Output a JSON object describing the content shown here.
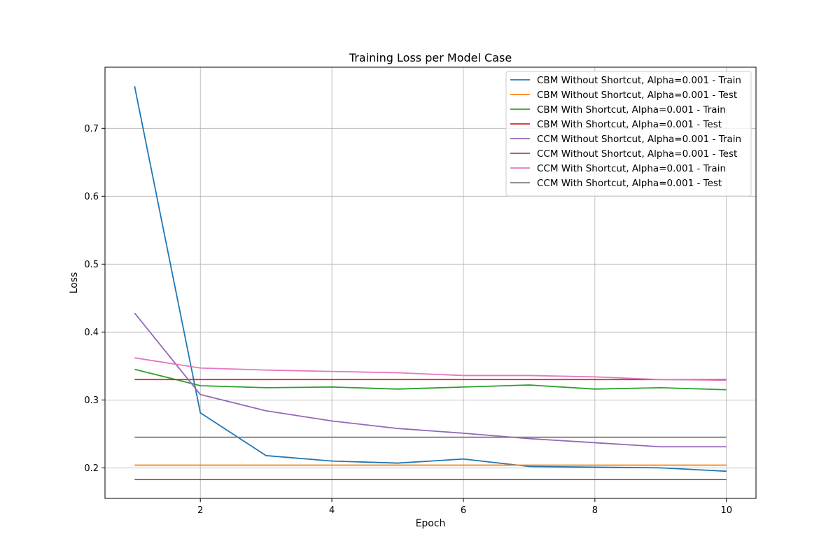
{
  "chart_data": {
    "type": "line",
    "title": "Training Loss per Model Case",
    "xlabel": "Epoch",
    "ylabel": "Loss",
    "xlim": [
      0.55,
      10.45
    ],
    "ylim": [
      0.155,
      0.79
    ],
    "xticks": [
      2,
      4,
      6,
      8,
      10
    ],
    "yticks": [
      0.2,
      0.3,
      0.4,
      0.5,
      0.6,
      0.7
    ],
    "grid": true,
    "legend_position": "top-right",
    "x": [
      1,
      2,
      3,
      4,
      5,
      6,
      7,
      8,
      9,
      10
    ],
    "series": [
      {
        "name": "CBM Without Shortcut, Alpha=0.001 - Train",
        "color": "#1f77b4",
        "values": [
          0.762,
          0.281,
          0.218,
          0.21,
          0.207,
          0.213,
          0.202,
          0.201,
          0.2,
          0.195
        ]
      },
      {
        "name": "CBM Without Shortcut, Alpha=0.001 - Test",
        "color": "#ff7f0e",
        "values": [
          0.204,
          0.204,
          0.204,
          0.204,
          0.204,
          0.204,
          0.204,
          0.204,
          0.204,
          0.204
        ]
      },
      {
        "name": "CBM With Shortcut, Alpha=0.001 - Train",
        "color": "#2ca02c",
        "values": [
          0.345,
          0.321,
          0.318,
          0.319,
          0.316,
          0.319,
          0.322,
          0.316,
          0.318,
          0.315
        ]
      },
      {
        "name": "CBM With Shortcut, Alpha=0.001 - Test",
        "color": "#d62728",
        "values": [
          0.33,
          0.33,
          0.33,
          0.33,
          0.33,
          0.33,
          0.33,
          0.33,
          0.33,
          0.33
        ]
      },
      {
        "name": "CCM Without Shortcut, Alpha=0.001 - Train",
        "color": "#9467bd",
        "values": [
          0.428,
          0.308,
          0.284,
          0.269,
          0.258,
          0.251,
          0.243,
          0.237,
          0.231,
          0.231
        ]
      },
      {
        "name": "CCM Without Shortcut, Alpha=0.001 - Test",
        "color": "#8c564b",
        "values": [
          0.183,
          0.183,
          0.183,
          0.183,
          0.183,
          0.183,
          0.183,
          0.183,
          0.183,
          0.183
        ]
      },
      {
        "name": "CCM With Shortcut, Alpha=0.001 - Train",
        "color": "#e377c2",
        "values": [
          0.362,
          0.347,
          0.344,
          0.342,
          0.34,
          0.336,
          0.336,
          0.334,
          0.33,
          0.329
        ]
      },
      {
        "name": "CCM With Shortcut, Alpha=0.001 - Test",
        "color": "#7f7f7f",
        "values": [
          0.245,
          0.245,
          0.245,
          0.245,
          0.245,
          0.245,
          0.245,
          0.245,
          0.245,
          0.245
        ]
      }
    ]
  }
}
